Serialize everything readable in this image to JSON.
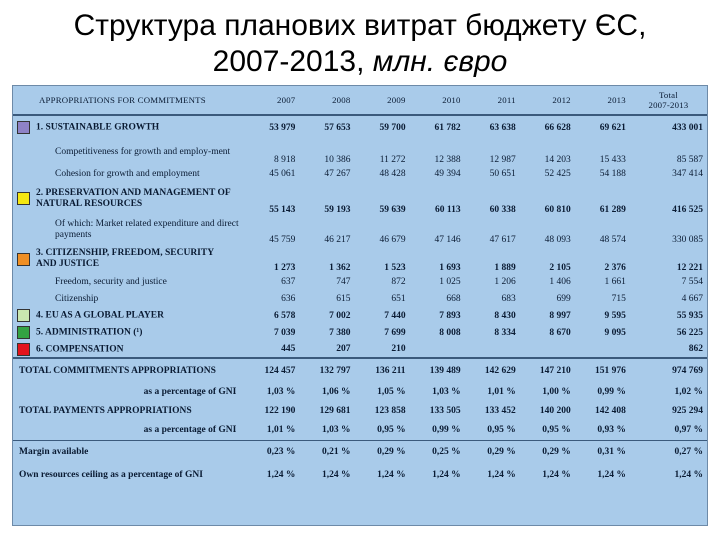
{
  "title": {
    "line1": "Структура планових витрат бюджету ЄС,",
    "line2": "2007-2013,",
    "unit": "млн. євро"
  },
  "columns": [
    "APPROPRIATIONS FOR COMMITMENTS",
    "2007",
    "2008",
    "2009",
    "2010",
    "2011",
    "2012",
    "2013",
    "Total",
    "2007-2013"
  ],
  "rows": [
    {
      "label": "1. SUSTAINABLE GROWTH",
      "color": "#8e82c6",
      "v": [
        "53 979",
        "57 653",
        "59 700",
        "61 782",
        "63 638",
        "66 628",
        "69 621",
        "433 001"
      ]
    },
    {
      "label": "Competitiveness for growth and employ-ment",
      "v": [
        "8 918",
        "10 386",
        "11 272",
        "12 388",
        "12 987",
        "14 203",
        "15 433",
        "85 587"
      ]
    },
    {
      "label": "Cohesion for growth and employment",
      "v": [
        "45 061",
        "47 267",
        "48 428",
        "49 394",
        "50 651",
        "52 425",
        "54 188",
        "347 414"
      ]
    },
    {
      "label": "2. PRESERVATION AND MANAGEMENT OF NATURAL RESOURCES",
      "color": "#f5e712",
      "v": [
        "55 143",
        "59 193",
        "59 639",
        "60 113",
        "60 338",
        "60 810",
        "61 289",
        "416 525"
      ]
    },
    {
      "label": "Of which: Market related expenditure and direct payments",
      "v": [
        "45 759",
        "46 217",
        "46 679",
        "47 146",
        "47 617",
        "48 093",
        "48 574",
        "330 085"
      ]
    },
    {
      "label": "3. CITIZENSHIP, FREEDOM, SECURITY AND JUSTICE",
      "color": "#ef8f25",
      "v": [
        "1 273",
        "1 362",
        "1 523",
        "1 693",
        "1 889",
        "2 105",
        "2 376",
        "12 221"
      ]
    },
    {
      "label": "Freedom, security and justice",
      "v": [
        "637",
        "747",
        "872",
        "1 025",
        "1 206",
        "1 406",
        "1 661",
        "7 554"
      ]
    },
    {
      "label": "Citizenship",
      "v": [
        "636",
        "615",
        "651",
        "668",
        "683",
        "699",
        "715",
        "4 667"
      ]
    },
    {
      "label": "4. EU AS A GLOBAL PLAYER",
      "color": "#c9e7b0",
      "v": [
        "6 578",
        "7 002",
        "7 440",
        "7 893",
        "8 430",
        "8 997",
        "9 595",
        "55 935"
      ]
    },
    {
      "label": "5. ADMINISTRATION (¹)",
      "color": "#33a343",
      "v": [
        "7 039",
        "7 380",
        "7 699",
        "8 008",
        "8 334",
        "8 670",
        "9 095",
        "56 225"
      ]
    },
    {
      "label": "6. COMPENSATION",
      "color": "#e3141c",
      "v": [
        "445",
        "207",
        "210",
        "",
        "",
        "",
        "",
        "862"
      ]
    },
    {
      "label": "TOTAL COMMITMENTS APPROPRIATIONS",
      "v": [
        "124 457",
        "132 797",
        "136 211",
        "139 489",
        "142 629",
        "147 210",
        "151 976",
        "974 769"
      ]
    },
    {
      "label": "as a percentage of GNI",
      "v": [
        "1,03 %",
        "1,06 %",
        "1,05 %",
        "1,03 %",
        "1,01 %",
        "1,00 %",
        "0,99 %",
        "1,02 %"
      ]
    },
    {
      "label": "TOTAL PAYMENTS APPROPRIATIONS",
      "v": [
        "122 190",
        "129 681",
        "123 858",
        "133 505",
        "133 452",
        "140 200",
        "142 408",
        "925 294"
      ]
    },
    {
      "label": "as a percentage of GNI",
      "v": [
        "1,01 %",
        "1,03 %",
        "0,95 %",
        "0,99 %",
        "0,95 %",
        "0,95 %",
        "0,93 %",
        "0,97 %"
      ]
    },
    {
      "label": "Margin available",
      "v": [
        "0,23 %",
        "0,21 %",
        "0,29 %",
        "0,25 %",
        "0,29 %",
        "0,29 %",
        "0,31 %",
        "0,27 %"
      ]
    },
    {
      "label": "Own resources ceiling as a percentage of GNI",
      "v": [
        "1,24 %",
        "1,24 %",
        "1,24 %",
        "1,24 %",
        "1,24 %",
        "1,24 %",
        "1,24 %",
        "1,24 %"
      ]
    }
  ]
}
